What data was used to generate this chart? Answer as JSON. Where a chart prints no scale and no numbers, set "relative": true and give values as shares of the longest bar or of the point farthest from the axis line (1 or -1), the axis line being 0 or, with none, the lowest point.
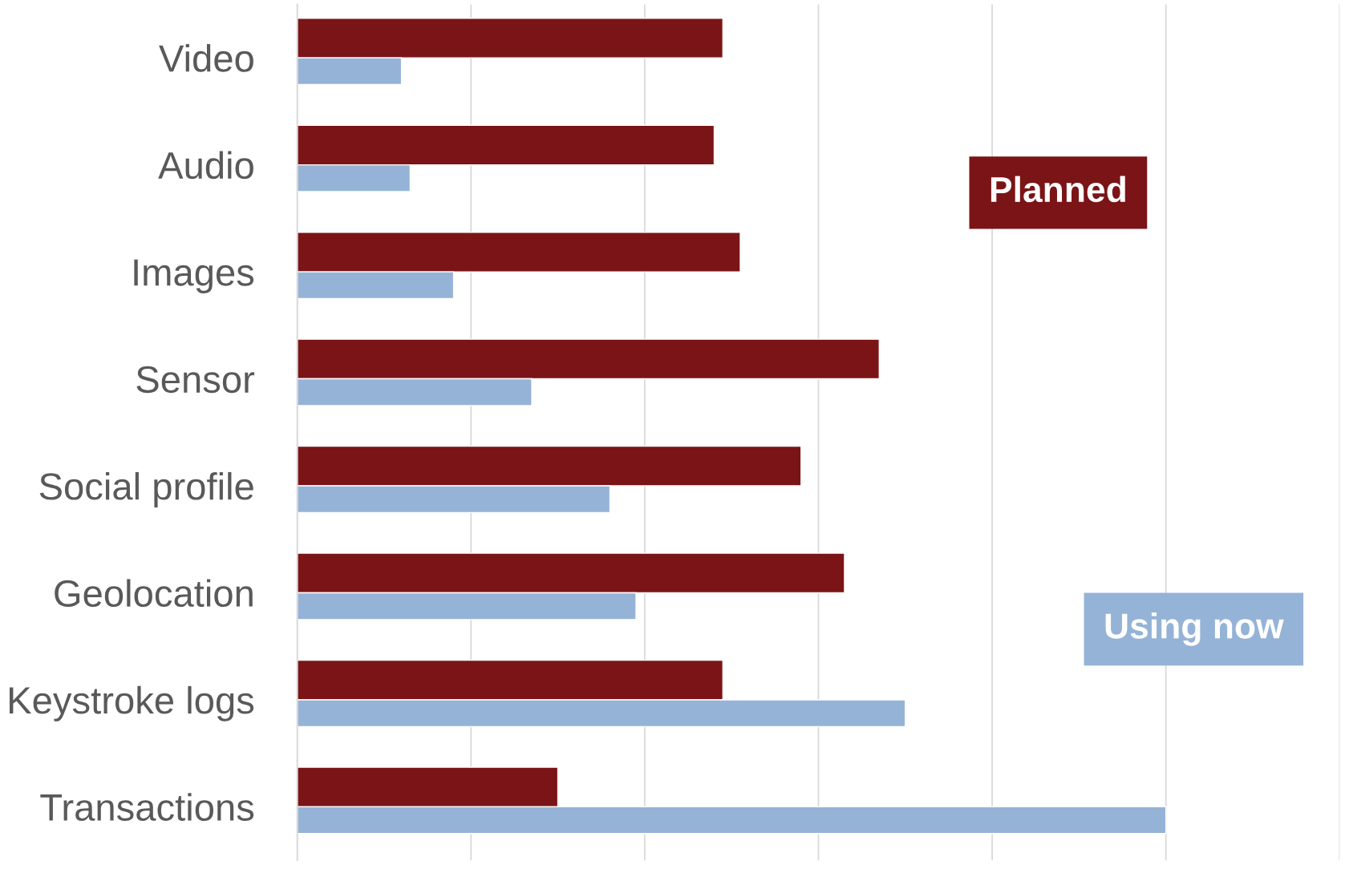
{
  "chart_data": {
    "type": "bar",
    "orientation": "horizontal",
    "relative": true,
    "grid": "x",
    "tick_labels": "y",
    "categories": [
      "Video",
      "Audio",
      "Images",
      "Sensor",
      "Social profile",
      "Geolocation",
      "Keystroke logs",
      "Transactions"
    ],
    "series": [
      {
        "name": "Planned",
        "color": "#7b1416",
        "values": [
          0.49,
          0.48,
          0.51,
          0.67,
          0.58,
          0.63,
          0.49,
          0.3
        ]
      },
      {
        "name": "Using now",
        "color": "#95b3d7",
        "values": [
          0.12,
          0.13,
          0.18,
          0.27,
          0.36,
          0.39,
          0.7,
          1.0
        ]
      }
    ]
  }
}
